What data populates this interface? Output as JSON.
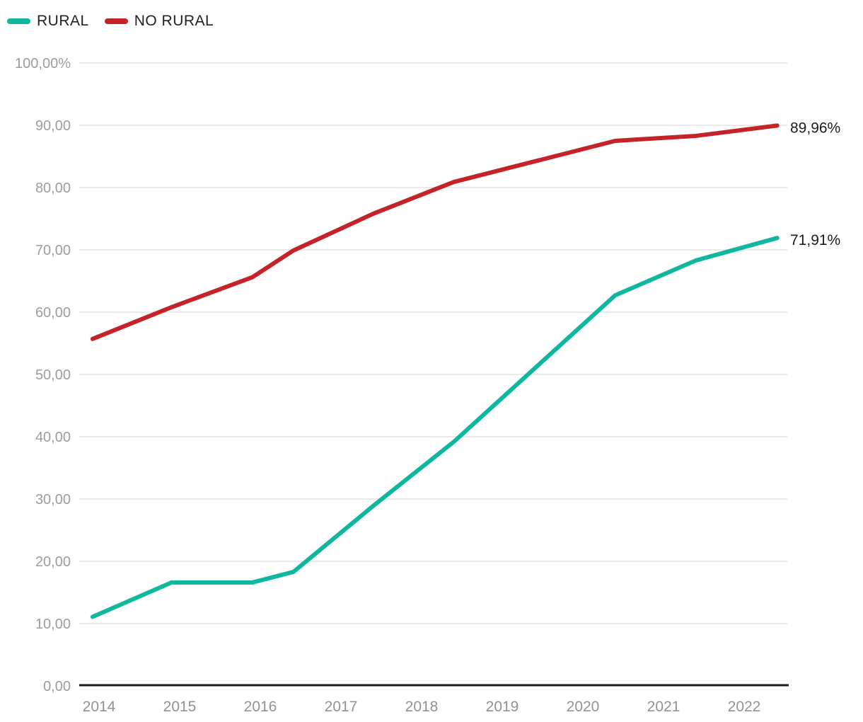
{
  "legend": [
    {
      "label": "RURAL",
      "color": "#0fb7a0"
    },
    {
      "label": "NO RURAL",
      "color": "#c4232a"
    }
  ],
  "chart_data": {
    "type": "line",
    "title": "",
    "xlabel": "",
    "ylabel": "",
    "grid": true,
    "legend_position": "top-left",
    "ylim": [
      0,
      100
    ],
    "xlim": [
      2013.75,
      2022.6
    ],
    "x": [
      2013.92,
      2014.9,
      2015.9,
      2016.41,
      2017.4,
      2018.4,
      2020.4,
      2021.4,
      2022.41
    ],
    "series": [
      {
        "name": "RURAL",
        "color": "#0fb7a0",
        "values": [
          11.1,
          16.6,
          16.6,
          18.3,
          28.9,
          39.2,
          62.7,
          68.3,
          71.91
        ],
        "end_label": "71,91%"
      },
      {
        "name": "NO RURAL",
        "color": "#c4232a",
        "values": [
          55.7,
          60.8,
          65.6,
          69.9,
          75.8,
          80.9,
          87.5,
          88.3,
          89.96
        ],
        "end_label": "89,96%"
      }
    ],
    "x_ticks": [
      {
        "value": 2014,
        "label": "2014"
      },
      {
        "value": 2015,
        "label": "2015"
      },
      {
        "value": 2016,
        "label": "2016"
      },
      {
        "value": 2017,
        "label": "2017"
      },
      {
        "value": 2018,
        "label": "2018"
      },
      {
        "value": 2019,
        "label": "2019"
      },
      {
        "value": 2020,
        "label": "2020"
      },
      {
        "value": 2021,
        "label": "2021"
      },
      {
        "value": 2022,
        "label": "2022"
      }
    ],
    "y_ticks": [
      {
        "value": 0,
        "label": "0,00"
      },
      {
        "value": 10,
        "label": "10,00"
      },
      {
        "value": 20,
        "label": "20,00"
      },
      {
        "value": 30,
        "label": "30,00"
      },
      {
        "value": 40,
        "label": "40,00"
      },
      {
        "value": 50,
        "label": "50,00"
      },
      {
        "value": 60,
        "label": "60,00"
      },
      {
        "value": 70,
        "label": "70,00"
      },
      {
        "value": 80,
        "label": "80,00"
      },
      {
        "value": 90,
        "label": "90,00"
      },
      {
        "value": 100,
        "label": "100,00%"
      }
    ]
  },
  "colors": {
    "grid": "#e9e9e9",
    "axis_line": "#1a1a1a",
    "y_tick_text": "#9c9c9c",
    "x_tick_text": "#8f9398",
    "end_label_text": "#1b1b1b",
    "legend_text": "#202124",
    "background": "#ffffff"
  }
}
